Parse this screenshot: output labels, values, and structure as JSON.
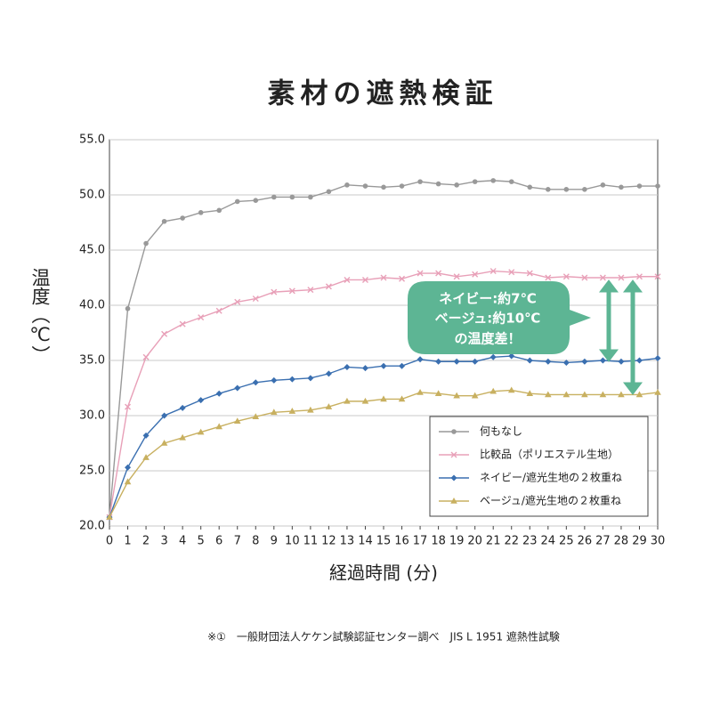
{
  "chart_data": {
    "type": "line",
    "title": "素材の遮熱検証",
    "ylabel": "温度（℃）",
    "xlabel": "経過時間 (分)",
    "footnote": "※①　一般財団法人ケケン試験認証センター調べ　JIS L 1951 遮熱性試験",
    "annotation": [
      "ネイビー:約7℃",
      "ベージュ:約10℃",
      "の温度差！"
    ],
    "x": [
      0,
      1,
      2,
      3,
      4,
      5,
      6,
      7,
      8,
      9,
      10,
      11,
      12,
      13,
      14,
      15,
      16,
      17,
      18,
      19,
      20,
      21,
      22,
      23,
      24,
      25,
      26,
      27,
      28,
      29,
      30
    ],
    "xlim": [
      0,
      30
    ],
    "xticks": [
      0,
      1,
      2,
      3,
      4,
      5,
      6,
      7,
      8,
      9,
      10,
      11,
      12,
      13,
      14,
      15,
      16,
      17,
      18,
      19,
      20,
      21,
      22,
      23,
      24,
      25,
      26,
      27,
      28,
      29,
      30
    ],
    "ylim": [
      20,
      55
    ],
    "yticks": [
      {
        "value": 20,
        "label": "20.0"
      },
      {
        "value": 25,
        "label": "25.0"
      },
      {
        "value": 30,
        "label": "30.0"
      },
      {
        "value": 35,
        "label": "35.0"
      },
      {
        "value": 40,
        "label": "40.0"
      },
      {
        "value": 45,
        "label": "45.0"
      },
      {
        "value": 50,
        "label": "50.0"
      },
      {
        "value": 55,
        "label": "55.0"
      }
    ],
    "grid": true,
    "legend": "lower right",
    "series": [
      {
        "name": "何もなし",
        "color": "#999999",
        "marker": "circle",
        "values": [
          20.8,
          39.7,
          45.6,
          47.6,
          47.9,
          48.4,
          48.6,
          49.4,
          49.5,
          49.8,
          49.8,
          49.8,
          50.3,
          50.9,
          50.8,
          50.7,
          50.8,
          51.2,
          51.0,
          50.9,
          51.2,
          51.3,
          51.2,
          50.7,
          50.5,
          50.5,
          50.5,
          50.9,
          50.7,
          50.8,
          50.8
        ]
      },
      {
        "name": "比較品（ポリエステル生地）",
        "color": "#e8a0b8",
        "marker": "cross",
        "values": [
          20.8,
          30.8,
          35.3,
          37.4,
          38.3,
          38.9,
          39.5,
          40.3,
          40.6,
          41.2,
          41.3,
          41.4,
          41.7,
          42.3,
          42.3,
          42.5,
          42.4,
          42.9,
          42.9,
          42.6,
          42.8,
          43.1,
          43.0,
          42.9,
          42.5,
          42.6,
          42.5,
          42.5,
          42.5,
          42.6,
          42.6
        ]
      },
      {
        "name": "ネイビー/遮光生地の２枚重ね",
        "color": "#3a6fb0",
        "marker": "diamond",
        "values": [
          20.8,
          25.3,
          28.2,
          30.0,
          30.7,
          31.4,
          32.0,
          32.5,
          33.0,
          33.2,
          33.3,
          33.4,
          33.8,
          34.4,
          34.3,
          34.5,
          34.5,
          35.1,
          34.9,
          34.9,
          34.9,
          35.3,
          35.4,
          35.0,
          34.9,
          34.8,
          34.9,
          35.0,
          34.9,
          35.0,
          35.2
        ]
      },
      {
        "name": "ベージュ/遮光生地の２枚重ね",
        "color": "#c8b060",
        "marker": "triangle",
        "values": [
          20.8,
          24.0,
          26.2,
          27.5,
          28.0,
          28.5,
          29.0,
          29.5,
          29.9,
          30.3,
          30.4,
          30.5,
          30.8,
          31.3,
          31.3,
          31.5,
          31.5,
          32.1,
          32.0,
          31.8,
          31.8,
          32.2,
          32.3,
          32.0,
          31.9,
          31.9,
          31.9,
          31.9,
          31.9,
          31.9,
          32.1
        ]
      }
    ]
  }
}
